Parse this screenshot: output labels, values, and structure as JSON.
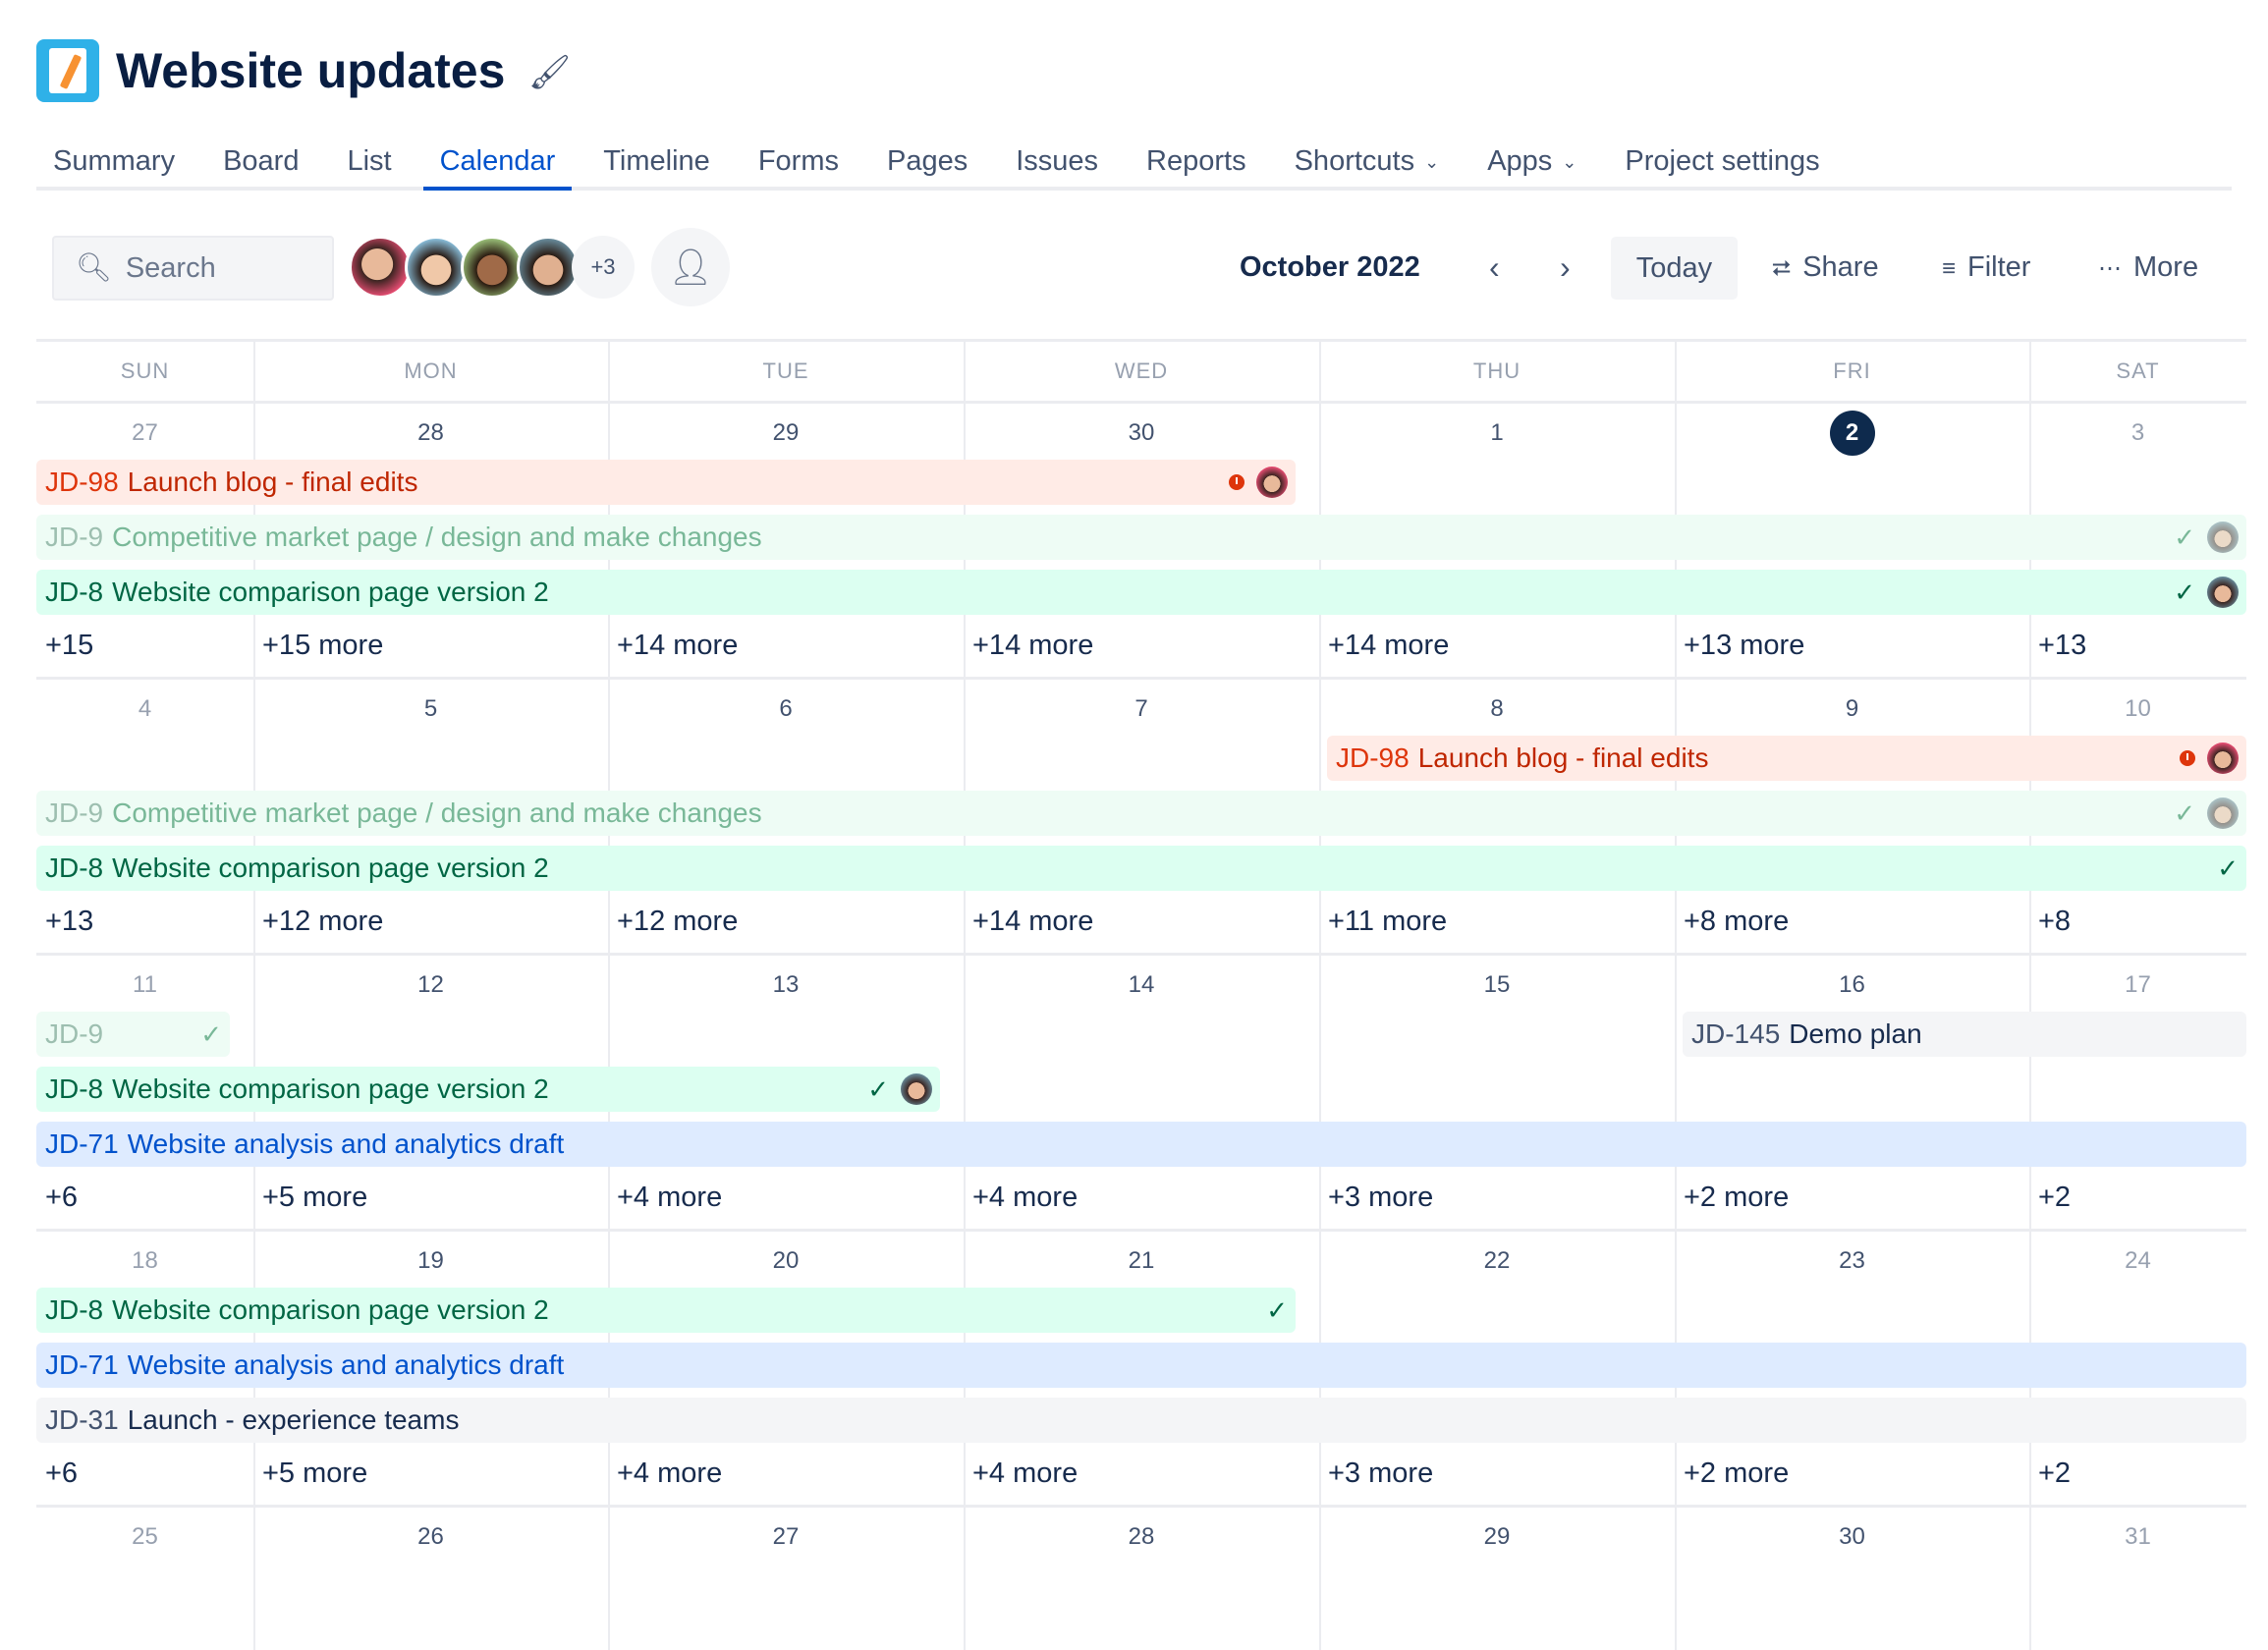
{
  "project": {
    "title": "Website updates",
    "logo_icon": "notebook-pencil-icon",
    "theme_icon": "paint-bucket-icon"
  },
  "tabs": [
    {
      "label": "Summary"
    },
    {
      "label": "Board"
    },
    {
      "label": "List"
    },
    {
      "label": "Calendar",
      "active": true
    },
    {
      "label": "Timeline"
    },
    {
      "label": "Forms"
    },
    {
      "label": "Pages"
    },
    {
      "label": "Issues"
    },
    {
      "label": "Reports"
    },
    {
      "label": "Shortcuts",
      "dropdown": true
    },
    {
      "label": "Apps",
      "dropdown": true
    },
    {
      "label": "Project settings"
    }
  ],
  "toolbar": {
    "search_placeholder": "Search",
    "extra_members": "+3",
    "month": "October 2022",
    "today": "Today",
    "share": "Share",
    "filter": "Filter",
    "more": "More"
  },
  "colors": {
    "accent": "#0052CC",
    "today": "#0E2A4D"
  },
  "calendar": {
    "day_headers": [
      "SUN",
      "MON",
      "TUE",
      "WED",
      "THU",
      "FRI",
      "SAT"
    ],
    "today": "2",
    "weeks": [
      {
        "dates": [
          "27",
          "28",
          "29",
          "30",
          "1",
          "2",
          "3"
        ],
        "more": [
          "+15",
          "+15 more",
          "+14 more",
          "+14 more",
          "+14 more",
          "+13 more",
          "+13"
        ],
        "bars": [
          {
            "key": "JD-98",
            "title": "Launch blog - final edits",
            "style": "red",
            "start": 0,
            "end": 3,
            "row": 0,
            "icons": [
              "clock",
              "avatar"
            ]
          },
          {
            "key": "JD-9",
            "title": "Competitive market page / design and make changes",
            "style": "faded",
            "start": 0,
            "end": 6,
            "row": 1,
            "icons": [
              "check",
              "avatar"
            ]
          },
          {
            "key": "JD-8",
            "title": "Website comparison page version 2",
            "style": "green",
            "start": 0,
            "end": 6,
            "row": 2,
            "icons": [
              "check",
              "avatar"
            ]
          }
        ]
      },
      {
        "dates": [
          "4",
          "5",
          "6",
          "7",
          "8",
          "9",
          "10"
        ],
        "more": [
          "+13",
          "+12 more",
          "+12 more",
          "+14 more",
          "+11 more",
          "+8 more",
          "+8"
        ],
        "bars": [
          {
            "key": "JD-98",
            "title": "Launch blog - final edits",
            "style": "red",
            "start": 4,
            "end": 6,
            "row": 0,
            "icons": [
              "clock",
              "avatar"
            ]
          },
          {
            "key": "JD-9",
            "title": "Competitive market page / design and make changes",
            "style": "faded",
            "start": 0,
            "end": 6,
            "row": 1,
            "icons": [
              "check",
              "avatar"
            ]
          },
          {
            "key": "JD-8",
            "title": "Website comparison page version 2",
            "style": "green",
            "start": 0,
            "end": 6,
            "row": 2,
            "icons": [
              "check"
            ]
          }
        ]
      },
      {
        "dates": [
          "11",
          "12",
          "13",
          "14",
          "15",
          "16",
          "17"
        ],
        "more": [
          "+6",
          "+5 more",
          "+4 more",
          "+4 more",
          "+3 more",
          "+2 more",
          "+2"
        ],
        "bars": [
          {
            "key": "JD-9",
            "title": "",
            "style": "faded",
            "start": 0,
            "end": 0,
            "row": 0,
            "icons": [
              "check"
            ]
          },
          {
            "key": "JD-145",
            "title": "Demo plan",
            "style": "gray",
            "start": 5,
            "end": 6,
            "row": 0,
            "icons": []
          },
          {
            "key": "JD-8",
            "title": "Website comparison page version 2",
            "style": "green",
            "start": 0,
            "end": 2,
            "row": 1,
            "icons": [
              "check",
              "avatar"
            ]
          },
          {
            "key": "JD-71",
            "title": "Website analysis and analytics draft",
            "style": "blue",
            "start": 0,
            "end": 6,
            "row": 2,
            "icons": []
          }
        ]
      },
      {
        "dates": [
          "18",
          "19",
          "20",
          "21",
          "22",
          "23",
          "24"
        ],
        "more": [
          "+6",
          "+5 more",
          "+4 more",
          "+4 more",
          "+3 more",
          "+2 more",
          "+2"
        ],
        "bars": [
          {
            "key": "JD-8",
            "title": "Website comparison page version 2",
            "style": "green",
            "start": 0,
            "end": 3,
            "row": 0,
            "icons": [
              "check"
            ]
          },
          {
            "key": "JD-71",
            "title": "Website analysis and analytics draft",
            "style": "blue",
            "start": 0,
            "end": 6,
            "row": 1,
            "icons": []
          },
          {
            "key": "JD-31",
            "title": "Launch - experience teams",
            "style": "gray",
            "start": 0,
            "end": 6,
            "row": 2,
            "icons": []
          }
        ]
      },
      {
        "dates": [
          "25",
          "26",
          "27",
          "28",
          "29",
          "30",
          "31"
        ],
        "more": [],
        "bars": []
      }
    ]
  }
}
